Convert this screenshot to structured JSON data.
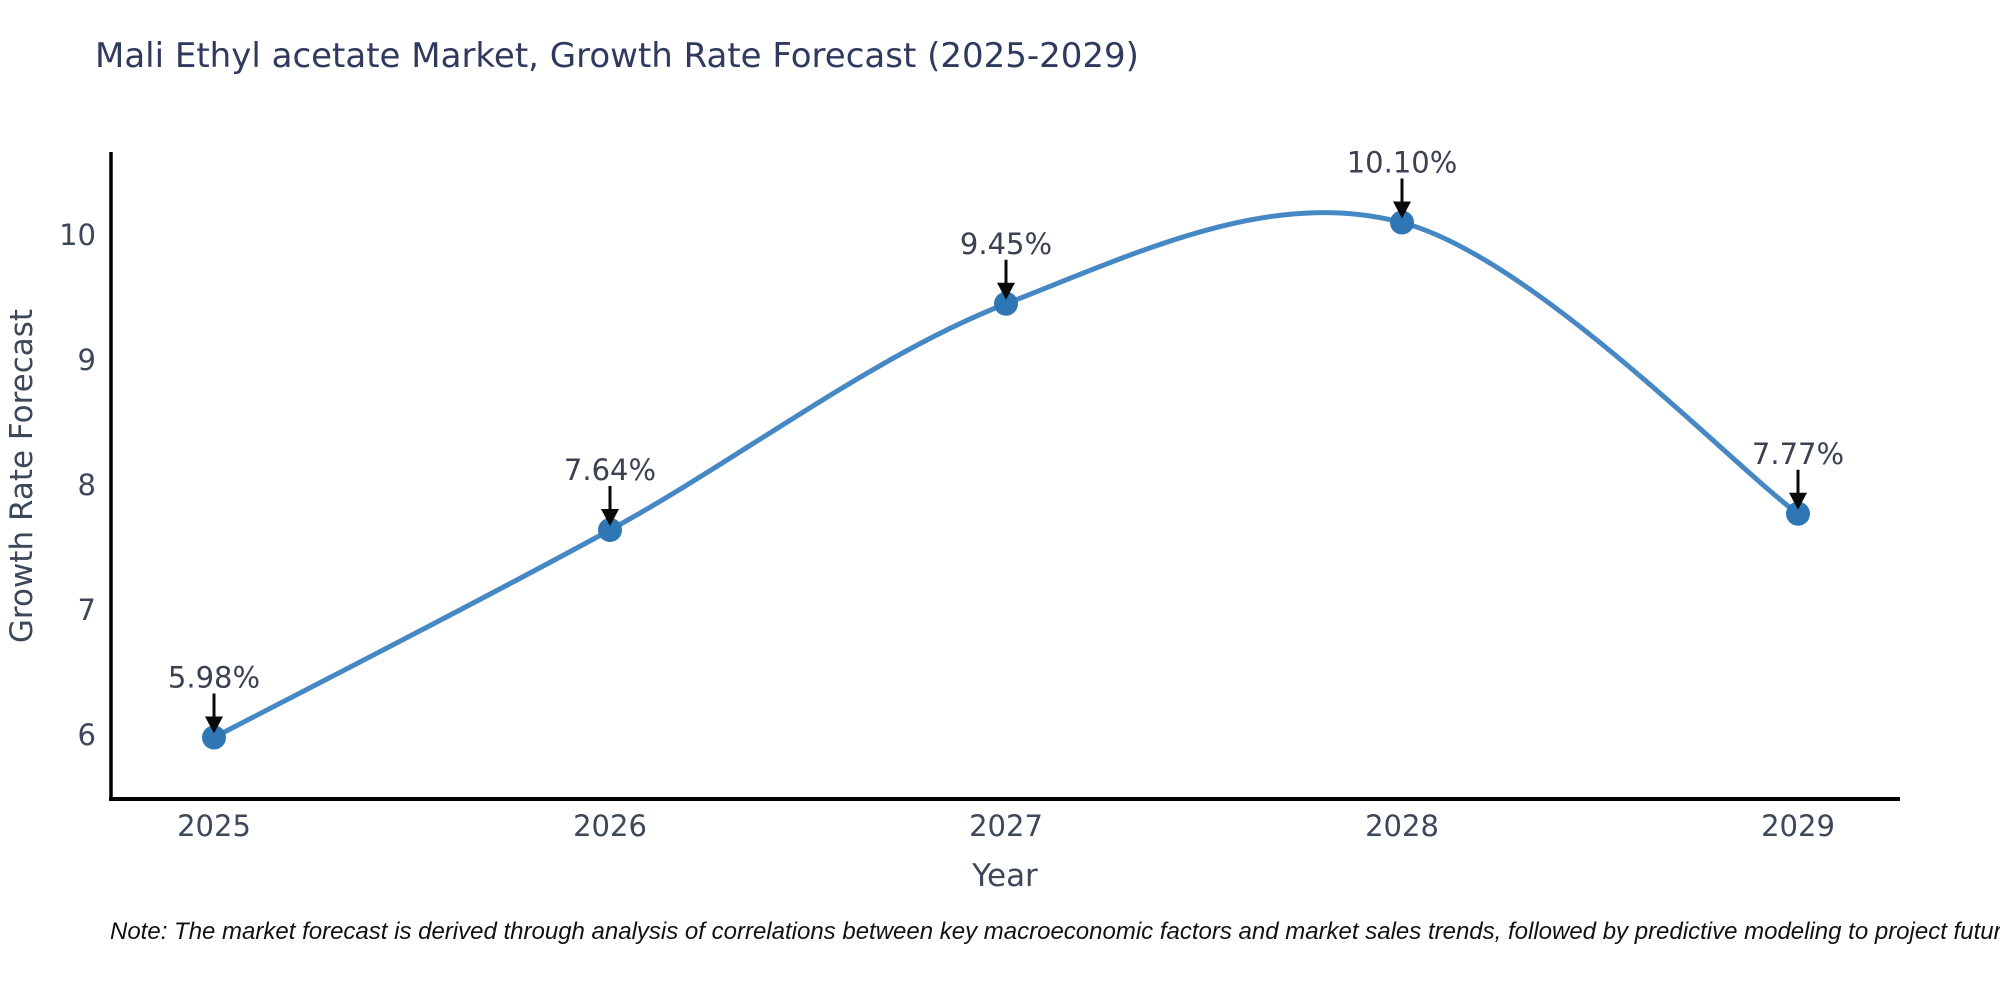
{
  "chart_data": {
    "type": "line",
    "title": "Mali Ethyl acetate Market, Growth Rate Forecast (2025-2029)",
    "x": [
      2025,
      2026,
      2027,
      2028,
      2029
    ],
    "y": [
      5.98,
      7.64,
      9.45,
      10.1,
      7.77
    ],
    "point_labels": [
      "5.98%",
      "7.64%",
      "9.45%",
      "10.10%",
      "7.77%"
    ],
    "xticks": [
      "2025",
      "2026",
      "2027",
      "2028",
      "2029"
    ],
    "yticks": [
      6,
      7,
      8,
      9,
      10
    ],
    "xlabel": "Year",
    "ylabel": "Growth Rate Forecast",
    "xlim": [
      2024.74,
      2029.26
    ],
    "ylim": [
      5.48,
      10.68
    ],
    "grid": false,
    "legend": null,
    "smooth_spline": true,
    "annotation_arrows": true,
    "note": "Note: The market forecast is derived through analysis of correlations between key macroeconomic factors and market sales trends, followed by predictive modeling to project future sales",
    "colors": {
      "line": "#4588c4",
      "marker": "#2f76b4",
      "axis": "#000000",
      "arrow": "#0a0a0a",
      "tick_label": "#3c4759",
      "axis_label": "#3c4759",
      "annotation_label": "#3b4150",
      "title": "#2f3a5e",
      "background": "#ffffff"
    }
  }
}
